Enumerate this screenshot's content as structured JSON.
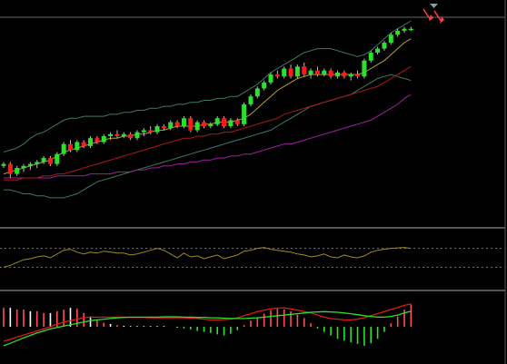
{
  "colors": {
    "background": "#000000",
    "up_candle": "#2ee02e",
    "down_candle": "#ff1a1a",
    "wick": "#bbbbbb",
    "bollinger_band": "#3d7a66",
    "ma_fast": "#b8a030",
    "ma_mid": "#b01818",
    "ma_slow": "#a020a0",
    "oscillator_line": "#a08a20",
    "macd_line": "#2ee02e",
    "signal_line": "#e01818",
    "histogram_pos": "#ff5050",
    "histogram_neg": "#2ee02e",
    "histogram_flat": "#ffffff",
    "grid": "#777777",
    "separator": "#aaaaaa",
    "current_marker": "#8899aa",
    "arrow": "#ff4040"
  },
  "chart_data": [
    {
      "type": "candlestick",
      "panel": "price",
      "ylim": [
        0,
        100
      ],
      "candles": [
        [
          22,
          24,
          21,
          23
        ],
        [
          23,
          24,
          16,
          18
        ],
        [
          18,
          22,
          17,
          21
        ],
        [
          21,
          23,
          19,
          22
        ],
        [
          22,
          24,
          20,
          23
        ],
        [
          23,
          25,
          21,
          24
        ],
        [
          24,
          27,
          23,
          26
        ],
        [
          26,
          27,
          22,
          23
        ],
        [
          23,
          29,
          22,
          28
        ],
        [
          28,
          34,
          27,
          33
        ],
        [
          33,
          35,
          29,
          30
        ],
        [
          30,
          35,
          29,
          34
        ],
        [
          34,
          35,
          31,
          32
        ],
        [
          32,
          37,
          31,
          36
        ],
        [
          36,
          37,
          33,
          34
        ],
        [
          34,
          38,
          33,
          37
        ],
        [
          37,
          39,
          35,
          38
        ],
        [
          38,
          40,
          36,
          37
        ],
        [
          37,
          39,
          36,
          38
        ],
        [
          38,
          39,
          35,
          36
        ],
        [
          36,
          40,
          35,
          39
        ],
        [
          39,
          41,
          37,
          40
        ],
        [
          40,
          42,
          38,
          39
        ],
        [
          39,
          43,
          38,
          42
        ],
        [
          42,
          43,
          40,
          41
        ],
        [
          41,
          45,
          40,
          44
        ],
        [
          44,
          45,
          41,
          42
        ],
        [
          42,
          47,
          41,
          46
        ],
        [
          46,
          47,
          39,
          40
        ],
        [
          40,
          45,
          39,
          44
        ],
        [
          44,
          45,
          41,
          42
        ],
        [
          42,
          44,
          41,
          43
        ],
        [
          43,
          47,
          42,
          46
        ],
        [
          46,
          47,
          41,
          42
        ],
        [
          42,
          46,
          41,
          45
        ],
        [
          45,
          46,
          42,
          43
        ],
        [
          43,
          54,
          42,
          53
        ],
        [
          53,
          58,
          52,
          57
        ],
        [
          57,
          62,
          56,
          61
        ],
        [
          61,
          65,
          60,
          64
        ],
        [
          64,
          69,
          63,
          68
        ],
        [
          68,
          70,
          66,
          67
        ],
        [
          67,
          72,
          66,
          71
        ],
        [
          71,
          73,
          66,
          67
        ],
        [
          67,
          73,
          66,
          72
        ],
        [
          72,
          74,
          67,
          68
        ],
        [
          68,
          71,
          66,
          70
        ],
        [
          70,
          72,
          67,
          68
        ],
        [
          68,
          71,
          67,
          70
        ],
        [
          70,
          71,
          66,
          67
        ],
        [
          67,
          70,
          66,
          69
        ],
        [
          69,
          70,
          66,
          67
        ],
        [
          67,
          69,
          65,
          68
        ],
        [
          68,
          70,
          66,
          67
        ],
        [
          67,
          76,
          66,
          75
        ],
        [
          75,
          80,
          74,
          79
        ],
        [
          79,
          82,
          78,
          81
        ],
        [
          81,
          85,
          80,
          84
        ],
        [
          84,
          89,
          83,
          88
        ],
        [
          88,
          91,
          87,
          90
        ],
        [
          90,
          92,
          89,
          91
        ],
        [
          91,
          92,
          90,
          91
        ]
      ],
      "bollinger_upper": [
        29,
        30,
        31,
        33,
        36,
        38,
        39,
        41,
        43,
        45,
        46,
        46,
        47,
        47,
        47,
        47,
        48,
        48,
        49,
        49,
        50,
        50,
        51,
        51,
        52,
        52,
        53,
        53,
        54,
        54,
        55,
        55,
        56,
        56,
        57,
        57,
        59,
        61,
        63,
        66,
        69,
        71,
        73,
        75,
        77,
        79,
        80,
        81,
        81,
        81,
        80,
        79,
        78,
        77,
        78,
        80,
        83,
        86,
        89,
        91,
        93,
        95
      ],
      "bollinger_lower": [
        10,
        10,
        9,
        8,
        8,
        7,
        7,
        6,
        6,
        6,
        7,
        8,
        10,
        12,
        14,
        15,
        16,
        17,
        18,
        19,
        20,
        21,
        22,
        23,
        24,
        25,
        26,
        27,
        28,
        29,
        30,
        31,
        32,
        33,
        34,
        35,
        36,
        37,
        38,
        39,
        40,
        42,
        44,
        46,
        48,
        50,
        52,
        53,
        54,
        55,
        56,
        57,
        58,
        60,
        62,
        64,
        66,
        67,
        68,
        67,
        66,
        65
      ],
      "ma_fast": [
        18,
        19,
        20,
        21,
        22,
        23,
        24,
        25,
        27,
        29,
        30,
        31,
        32,
        33,
        34,
        35,
        36,
        36,
        37,
        37,
        38,
        38,
        39,
        40,
        40,
        41,
        42,
        42,
        42,
        42,
        43,
        43,
        44,
        44,
        44,
        45,
        46,
        48,
        51,
        54,
        57,
        60,
        62,
        64,
        66,
        67,
        68,
        68,
        68,
        68,
        68,
        68,
        68,
        68,
        69,
        71,
        73,
        75,
        78,
        81,
        84,
        86
      ],
      "ma_mid": [
        15,
        15,
        15,
        16,
        16,
        16,
        17,
        17,
        18,
        18,
        19,
        20,
        21,
        22,
        23,
        24,
        25,
        26,
        27,
        28,
        29,
        30,
        31,
        32,
        33,
        34,
        35,
        36,
        36,
        37,
        37,
        38,
        38,
        39,
        39,
        40,
        41,
        42,
        43,
        44,
        45,
        46,
        48,
        49,
        50,
        51,
        52,
        53,
        54,
        55,
        56,
        57,
        58,
        59,
        60,
        61,
        62,
        64,
        66,
        68,
        70,
        72
      ],
      "ma_slow": [
        16,
        16,
        16,
        16,
        16,
        16,
        16,
        16,
        17,
        17,
        17,
        17,
        17,
        18,
        18,
        18,
        18,
        19,
        19,
        19,
        20,
        20,
        21,
        21,
        22,
        22,
        23,
        23,
        24,
        24,
        25,
        25,
        26,
        26,
        27,
        27,
        28,
        28,
        29,
        30,
        31,
        32,
        33,
        33,
        34,
        35,
        36,
        37,
        38,
        39,
        40,
        41,
        42,
        43,
        44,
        45,
        47,
        49,
        51,
        53,
        56,
        58
      ]
    },
    {
      "type": "line",
      "panel": "oscillator",
      "ylim": [
        0,
        100
      ],
      "reference_levels": [
        70,
        30
      ],
      "values": [
        30,
        34,
        40,
        46,
        48,
        52,
        54,
        50,
        58,
        66,
        68,
        62,
        58,
        62,
        60,
        64,
        62,
        60,
        60,
        56,
        58,
        62,
        66,
        70,
        66,
        58,
        50,
        60,
        52,
        54,
        48,
        52,
        56,
        48,
        52,
        56,
        64,
        66,
        70,
        72,
        68,
        66,
        64,
        62,
        58,
        56,
        52,
        54,
        58,
        52,
        50,
        56,
        52,
        50,
        54,
        62,
        66,
        68,
        70,
        71,
        72,
        70
      ]
    },
    {
      "type": "bar+line",
      "panel": "macd",
      "ylim": [
        -100,
        100
      ],
      "histogram": [
        55,
        55,
        50,
        50,
        45,
        45,
        40,
        40,
        45,
        50,
        55,
        52,
        40,
        30,
        20,
        12,
        8,
        5,
        3,
        2,
        2,
        2,
        2,
        2,
        2,
        0,
        -2,
        -5,
        -8,
        -12,
        -15,
        -18,
        -22,
        -25,
        -20,
        -10,
        5,
        18,
        28,
        38,
        48,
        55,
        50,
        45,
        35,
        25,
        10,
        -5,
        -15,
        -25,
        -35,
        -40,
        -45,
        -50,
        -55,
        -48,
        -35,
        -15,
        10,
        30,
        50,
        65
      ],
      "macd_line": [
        -55,
        -48,
        -40,
        -32,
        -25,
        -18,
        -12,
        -6,
        -2,
        2,
        6,
        10,
        14,
        18,
        20,
        22,
        24,
        26,
        27,
        28,
        28,
        28,
        28,
        28,
        29,
        29,
        29,
        28,
        28,
        27,
        27,
        26,
        26,
        25,
        24,
        24,
        24,
        25,
        26,
        28,
        30,
        32,
        34,
        36,
        38,
        40,
        42,
        43,
        44,
        43,
        42,
        40,
        38,
        35,
        32,
        30,
        28,
        28,
        30,
        34,
        40,
        45
      ],
      "signal_line": [
        -42,
        -36,
        -30,
        -24,
        -18,
        -12,
        -6,
        0,
        8,
        14,
        18,
        22,
        26,
        28,
        28,
        28,
        28,
        28,
        28,
        27,
        27,
        27,
        26,
        26,
        26,
        26,
        26,
        26,
        25,
        24,
        22,
        20,
        20,
        21,
        22,
        26,
        32,
        38,
        44,
        48,
        52,
        54,
        55,
        52,
        48,
        44,
        40,
        34,
        28,
        24,
        22,
        20,
        20,
        22,
        26,
        32,
        38,
        44,
        50,
        56,
        62,
        66
      ]
    }
  ]
}
